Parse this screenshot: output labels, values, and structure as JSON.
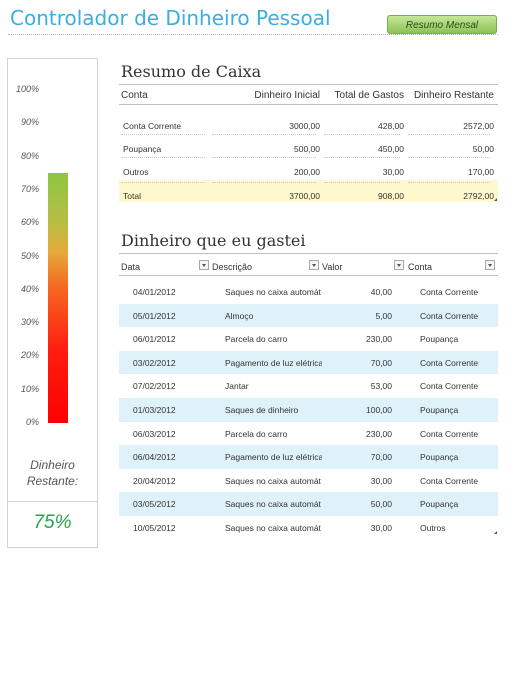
{
  "header": {
    "title": "Controlador de Dinheiro Pessoal",
    "summary_button": "Resumo Mensal"
  },
  "gauge": {
    "ticks": [
      "100%",
      "90%",
      "80%",
      "70%",
      "60%",
      "50%",
      "40%",
      "30%",
      "20%",
      "10%",
      "0%"
    ],
    "level_percent": 75,
    "caption_line1": "Dinheiro",
    "caption_line2": "Restante:",
    "value": "75%"
  },
  "cash_summary": {
    "title": "Resumo de Caixa",
    "columns": [
      "Conta",
      "Dinheiro Inicial",
      "Total de Gastos",
      "Dinheiro Restante"
    ],
    "rows": [
      [
        "Conta Corrente",
        "3000,00",
        "428,00",
        "2572,00"
      ],
      [
        "Poupança",
        "500,00",
        "450,00",
        "50,00"
      ],
      [
        "Outros",
        "200,00",
        "30,00",
        "170,00"
      ]
    ],
    "total": [
      "Total",
      "3700,00",
      "908,00",
      "2792,00"
    ]
  },
  "spending": {
    "title": "Dinheiro que eu gastei",
    "columns": [
      "Data",
      "Descrição",
      "Valor",
      "Conta"
    ],
    "rows": [
      [
        "04/01/2012",
        "Saques no caixa automát",
        "40,00",
        "Conta Corrente"
      ],
      [
        "05/01/2012",
        "Almoço",
        "5,00",
        "Conta Corrente"
      ],
      [
        "06/01/2012",
        "Parcela do carro",
        "230,00",
        "Poupança"
      ],
      [
        "03/02/2012",
        "Pagamento de luz elétrica",
        "70,00",
        "Conta Corrente"
      ],
      [
        "07/02/2012",
        "Jantar",
        "53,00",
        "Conta Corrente"
      ],
      [
        "01/03/2012",
        "Saques de dinheiro",
        "100,00",
        "Poupança"
      ],
      [
        "06/03/2012",
        "Parcela do carro",
        "230,00",
        "Conta Corrente"
      ],
      [
        "06/04/2012",
        "Pagamento de luz elétrica",
        "70,00",
        "Poupança"
      ],
      [
        "20/04/2012",
        "Saques no caixa automát",
        "30,00",
        "Conta Corrente"
      ],
      [
        "03/05/2012",
        "Saques no caixa automát",
        "50,00",
        "Poupança"
      ],
      [
        "10/05/2012",
        "Saques no caixa automát",
        "30,00",
        "Outros"
      ]
    ]
  },
  "colors": {
    "title": "#3aaee3",
    "button": "#8dc357",
    "band": "#dff2fa",
    "total_band": "#fff8cc",
    "value": "#2aa14a"
  }
}
